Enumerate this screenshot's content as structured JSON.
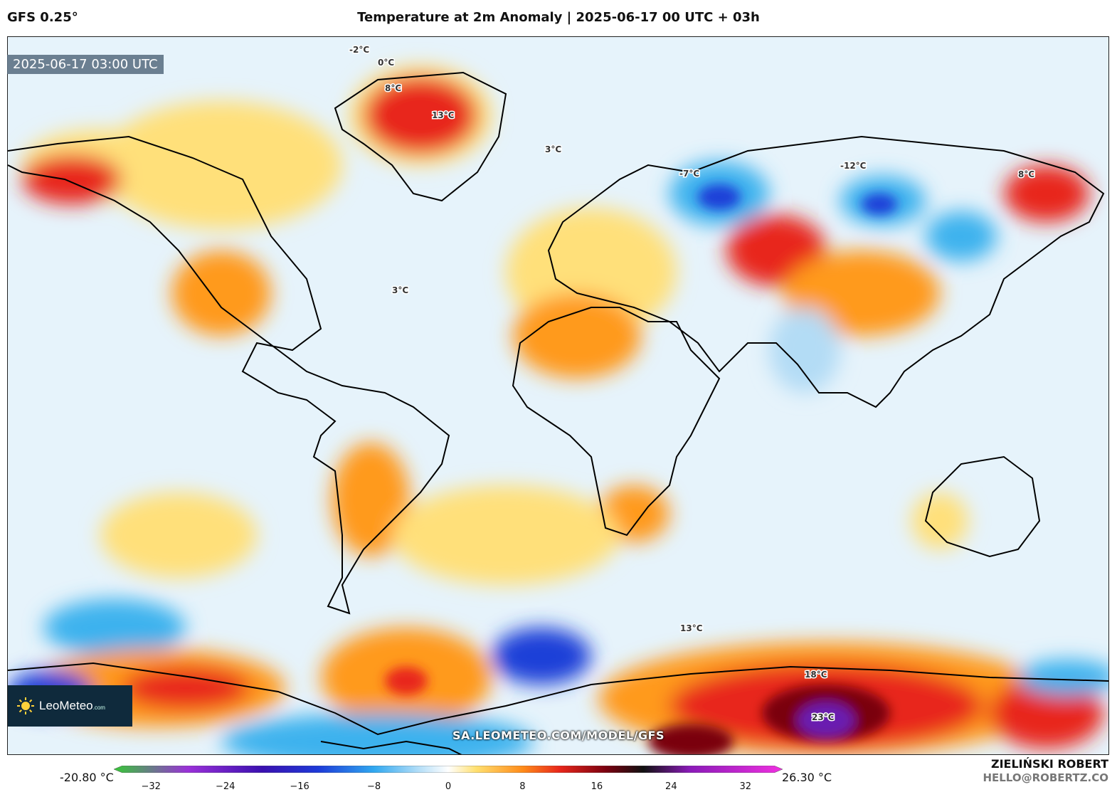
{
  "header": {
    "model": "GFS 0.25°",
    "title": "Temperature at 2m Anomaly | 2025-06-17 00 UTC + 03h"
  },
  "map": {
    "valid_time": "2025-06-17 03:00 UTC",
    "watermark": "SA.LEOMETEO.COM/MODEL/GFS",
    "labels": [
      "-2°C",
      "0°C",
      "8°C",
      "13°C",
      "3°C",
      "-12°C",
      "-7°C",
      "3°C",
      "8°C",
      "13°C",
      "18°C",
      "23°C"
    ],
    "palette": {
      "ocean": "#e6f3fb",
      "cold_light": "#b3dcf5",
      "cold_medium": "#3db2ee",
      "cold_strong": "#1a3fd8",
      "warm_light": "#ffe07a",
      "warm_medium": "#ff9a1e",
      "warm_strong": "#e8261a",
      "hot": "#7a0010",
      "extreme": "#6a1bb0",
      "coast": "#000000"
    }
  },
  "branding": {
    "logo_name": "LeoMeteo",
    "logo_suffix": ".com"
  },
  "colorbar": {
    "min_label": "-20.80 °C",
    "max_label": "26.30 °C",
    "ticks": [
      "−32",
      "−24",
      "−16",
      "−8",
      "0",
      "8",
      "16",
      "24",
      "32"
    ],
    "tick_values": [
      -32,
      -24,
      -16,
      -8,
      0,
      8,
      16,
      24,
      32
    ],
    "range": [
      -36,
      36
    ],
    "stops": [
      {
        "value": -36,
        "color": "#36c836"
      },
      {
        "value": -28,
        "color": "#9a30d8"
      },
      {
        "value": -20,
        "color": "#3a10b0"
      },
      {
        "value": -14,
        "color": "#1d3ad8"
      },
      {
        "value": -8,
        "color": "#30a8f0"
      },
      {
        "value": -3,
        "color": "#b8e0f8"
      },
      {
        "value": 0,
        "color": "#ffffff"
      },
      {
        "value": 3,
        "color": "#ffe070"
      },
      {
        "value": 8,
        "color": "#ff8c1a"
      },
      {
        "value": 12,
        "color": "#e8261a"
      },
      {
        "value": 17,
        "color": "#7a0010"
      },
      {
        "value": 21,
        "color": "#111111"
      },
      {
        "value": 26,
        "color": "#8a1ab8"
      },
      {
        "value": 36,
        "color": "#f030e0"
      }
    ]
  },
  "author": {
    "name": "ZIELIŃSKI ROBERT",
    "email": "HELLO@ROBERTZ.CO"
  }
}
